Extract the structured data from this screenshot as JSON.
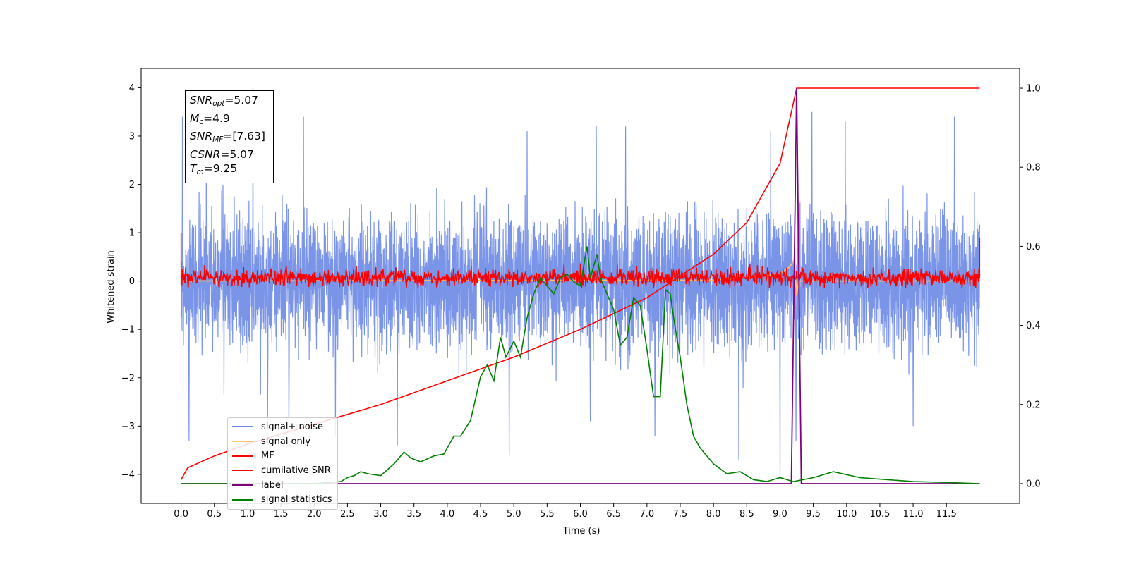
{
  "chart_data": {
    "type": "line",
    "title": "",
    "xlabel": "Time (s)",
    "ylabel": "Whitened strain",
    "xlim": [
      -0.6,
      12.6
    ],
    "ylim": [
      -4.6,
      4.4
    ],
    "y2lim": [
      -0.05,
      1.05
    ],
    "x_ticks": [
      0.0,
      0.5,
      1.0,
      1.5,
      2.0,
      2.5,
      3.0,
      3.5,
      4.0,
      4.5,
      5.0,
      5.5,
      6.0,
      6.5,
      7.0,
      7.5,
      8.0,
      8.5,
      9.0,
      9.5,
      10.0,
      10.5,
      11.0,
      11.5
    ],
    "x_tick_labels": [
      "0.0",
      "0.5",
      "1.0",
      "1.5",
      "2.0",
      "2.5",
      "3.0",
      "3.5",
      "4.0",
      "4.5",
      "5.0",
      "5.5",
      "6.0",
      "6.5",
      "7.0",
      "7.5",
      "8.0",
      "8.5",
      "9.0",
      "9.5",
      "10.0",
      "10.5",
      "11.0",
      "11.5"
    ],
    "y_ticks": [
      -4,
      -3,
      -2,
      -1,
      0,
      1,
      2,
      3,
      4
    ],
    "y_tick_labels": [
      "−4",
      "−3",
      "−2",
      "−1",
      "0",
      "1",
      "2",
      "3",
      "4"
    ],
    "y2_ticks": [
      0.0,
      0.2,
      0.4,
      0.6,
      0.8,
      1.0
    ],
    "y2_tick_labels": [
      "0.0",
      "0.2",
      "0.4",
      "0.6",
      "0.8",
      "1.0"
    ],
    "legend_position": "lower-left",
    "series": [
      {
        "name": "signal+ noise",
        "axis": "left",
        "color": "#6b88e6",
        "note_style": "dense noise",
        "x_range": [
          0.0,
          12.0
        ],
        "typical_envelope": [
          -1.6,
          1.6
        ],
        "peak_values": [
          [
            0.02,
            3.4
          ],
          [
            0.12,
            -3.3
          ],
          [
            0.38,
            3.3
          ],
          [
            1.08,
            4.0
          ],
          [
            1.3,
            -3.0
          ],
          [
            1.62,
            -3.1
          ],
          [
            1.84,
            3.4
          ],
          [
            2.32,
            -3.2
          ],
          [
            3.25,
            -3.4
          ],
          [
            4.93,
            -3.6
          ],
          [
            5.2,
            3.1
          ],
          [
            6.15,
            -2.9
          ],
          [
            6.24,
            3.2
          ],
          [
            6.68,
            3.2
          ],
          [
            7.12,
            -3.2
          ],
          [
            8.38,
            -3.7
          ],
          [
            8.86,
            3.1
          ],
          [
            9.0,
            -4.1
          ],
          [
            9.24,
            3.9
          ],
          [
            9.24,
            -3.3
          ],
          [
            9.48,
            3.5
          ],
          [
            9.98,
            3.3
          ],
          [
            11.0,
            -3.0
          ],
          [
            11.62,
            3.4
          ]
        ]
      },
      {
        "name": "signal only",
        "axis": "left",
        "color": "#ffc266",
        "x": [
          0.0,
          8.0,
          8.6,
          9.0,
          9.15,
          9.22,
          9.25,
          9.28,
          9.4,
          12.0
        ],
        "y": [
          0.0,
          0.02,
          0.08,
          0.15,
          0.3,
          0.45,
          -0.3,
          0.0,
          0.0,
          0.0
        ]
      },
      {
        "name": "MF",
        "axis": "left",
        "color": "#ff0000",
        "note_style": "band around zero",
        "x_range": [
          0.0,
          12.0
        ],
        "typical_envelope": [
          -0.15,
          0.3
        ],
        "edge_values": [
          [
            0.0,
            1.0
          ],
          [
            12.0,
            0.9
          ]
        ]
      },
      {
        "name": "cumilative SNR",
        "axis": "right",
        "color": "#ff0000",
        "x": [
          0.0,
          0.1,
          0.5,
          1.0,
          2.0,
          3.0,
          4.0,
          5.0,
          6.0,
          7.0,
          8.0,
          8.5,
          9.0,
          9.25,
          12.0
        ],
        "y": [
          0.01,
          0.04,
          0.07,
          0.1,
          0.15,
          0.2,
          0.26,
          0.32,
          0.39,
          0.47,
          0.58,
          0.66,
          0.81,
          1.0,
          1.0
        ]
      },
      {
        "name": "label",
        "axis": "right",
        "color": "#800080",
        "x": [
          0.0,
          9.17,
          9.25,
          9.32,
          12.0
        ],
        "y": [
          0.0,
          0.0,
          1.0,
          0.0,
          0.0
        ]
      },
      {
        "name": "signal statistics",
        "axis": "right",
        "color": "#008000",
        "x": [
          0.0,
          1.0,
          2.0,
          2.4,
          2.5,
          2.6,
          2.7,
          2.8,
          3.0,
          3.2,
          3.35,
          3.45,
          3.6,
          3.8,
          3.95,
          4.1,
          4.2,
          4.35,
          4.5,
          4.6,
          4.7,
          4.8,
          4.88,
          5.0,
          5.1,
          5.2,
          5.3,
          5.4,
          5.5,
          5.6,
          5.7,
          5.8,
          5.9,
          6.0,
          6.1,
          6.15,
          6.25,
          6.3,
          6.35,
          6.4,
          6.5,
          6.6,
          6.7,
          6.8,
          6.9,
          7.0,
          7.1,
          7.2,
          7.28,
          7.35,
          7.42,
          7.5,
          7.6,
          7.7,
          7.8,
          8.0,
          8.2,
          8.4,
          8.6,
          8.8,
          9.0,
          9.2,
          9.5,
          9.8,
          10.2,
          10.6,
          11.0,
          11.5,
          12.0
        ],
        "y": [
          0.0,
          0.0,
          0.0,
          0.005,
          0.015,
          0.02,
          0.03,
          0.025,
          0.02,
          0.05,
          0.08,
          0.065,
          0.055,
          0.07,
          0.075,
          0.12,
          0.12,
          0.16,
          0.27,
          0.3,
          0.26,
          0.37,
          0.32,
          0.36,
          0.32,
          0.42,
          0.48,
          0.52,
          0.5,
          0.48,
          0.52,
          0.53,
          0.51,
          0.5,
          0.6,
          0.52,
          0.58,
          0.52,
          0.5,
          0.48,
          0.44,
          0.35,
          0.37,
          0.47,
          0.45,
          0.34,
          0.22,
          0.22,
          0.49,
          0.48,
          0.4,
          0.32,
          0.2,
          0.12,
          0.09,
          0.05,
          0.025,
          0.03,
          0.01,
          0.005,
          0.015,
          0.005,
          0.015,
          0.03,
          0.015,
          0.01,
          0.005,
          0.003,
          0.0
        ]
      }
    ]
  },
  "info_box": {
    "snr_opt_sym": "SNR",
    "snr_opt_sub": "opt",
    "snr_opt_val": "=5.07",
    "mc_sym": "M",
    "mc_sub": "c",
    "mc_val": "=4.9",
    "snr_mf_sym": "SNR",
    "snr_mf_sub": "MF",
    "snr_mf_val": "=[7.63]",
    "csnr_sym": "CSNR",
    "csnr_val": "=5.07",
    "tm_sym": "T",
    "tm_sub": "m",
    "tm_val": "=9.25"
  }
}
